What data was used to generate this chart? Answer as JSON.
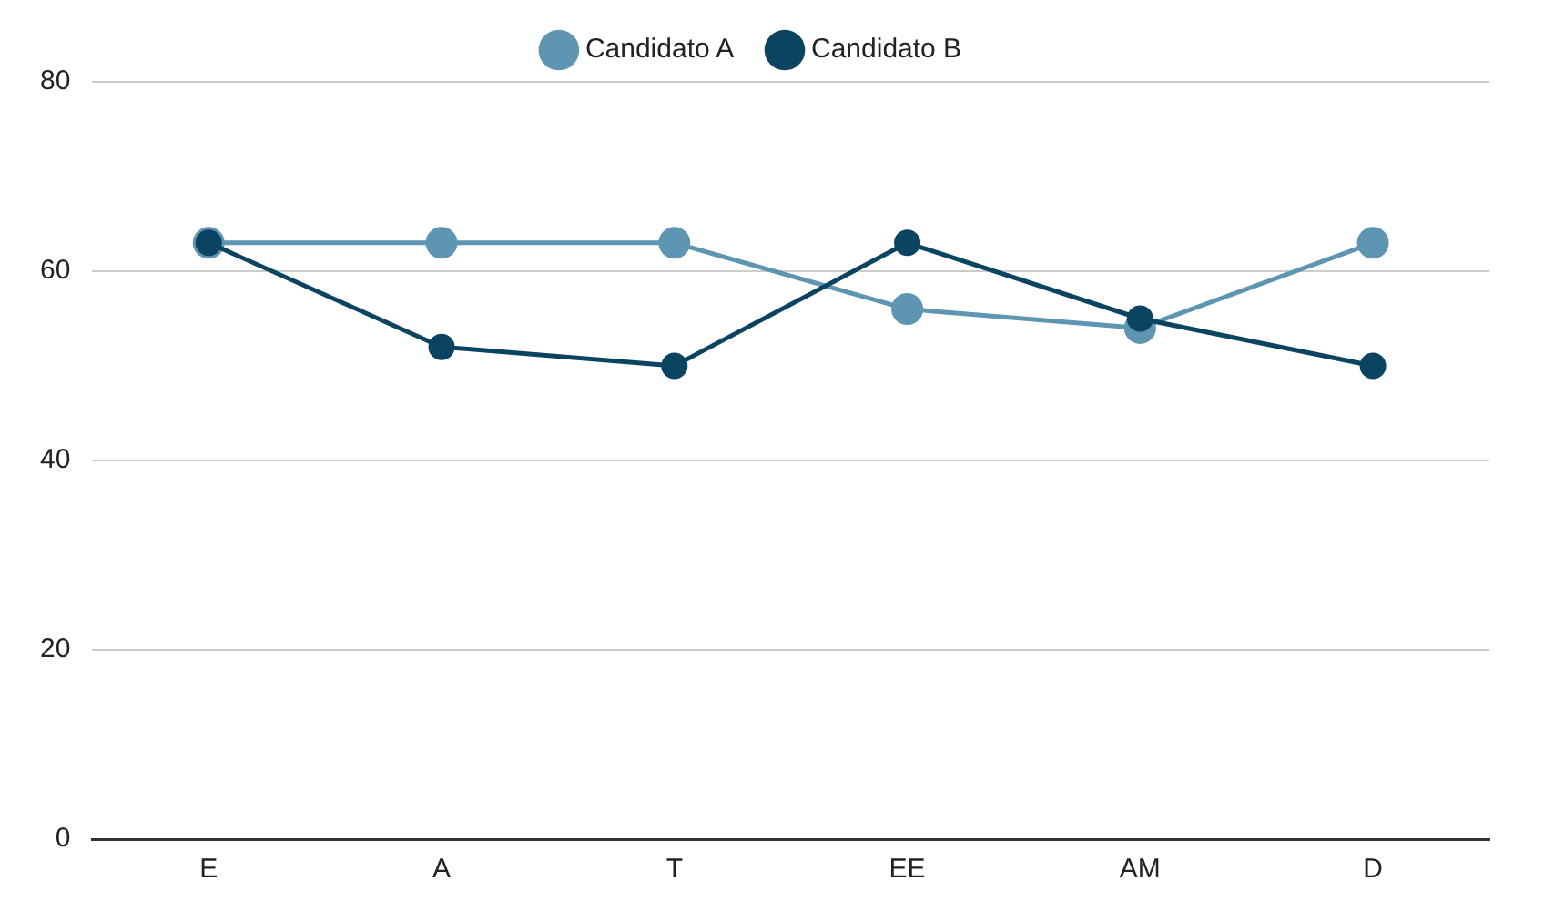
{
  "chart_data": {
    "type": "line",
    "categories": [
      "E",
      "A",
      "T",
      "EE",
      "AM",
      "D"
    ],
    "series": [
      {
        "name": "Candidato A",
        "color": "#5e95b3",
        "values": [
          63,
          63,
          63,
          56,
          54,
          63
        ]
      },
      {
        "name": "Candidato B",
        "color": "#0b4461",
        "values": [
          63,
          52,
          50,
          63,
          55,
          50
        ]
      }
    ],
    "ylim": [
      0,
      80
    ],
    "yticks": [
      0,
      20,
      40,
      60,
      80
    ],
    "grid": "y",
    "legend": "top",
    "marker": "circle",
    "line_style": "solid"
  }
}
